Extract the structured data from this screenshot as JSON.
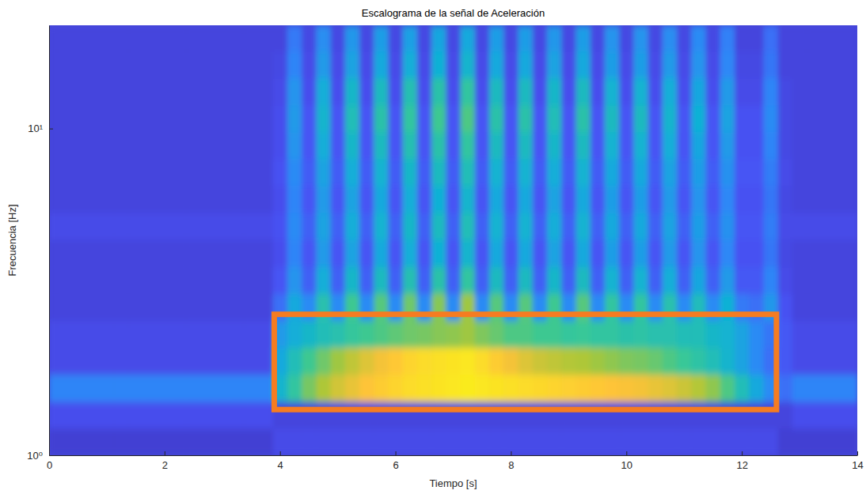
{
  "chart_data": {
    "type": "heatmap",
    "title": "Escalograma de la señal de Aceleración",
    "x_label": "Tiempo [s]",
    "y_label": "Frecuencia [Hz]",
    "xlim": [
      0,
      14
    ],
    "xticks": [
      0,
      2,
      4,
      6,
      8,
      10,
      12,
      14
    ],
    "ylim": [
      1,
      20.7
    ],
    "yticks": [
      {
        "value": 1,
        "label": "10⁰"
      },
      {
        "value": 10,
        "label": "10¹"
      }
    ],
    "log": "y",
    "grid": false,
    "zlim": [
      0,
      1
    ],
    "x_bins": [
      0,
      0.125,
      0.375,
      0.625,
      0.875,
      1.125,
      1.375,
      1.625,
      1.875,
      2.125,
      2.375,
      2.625,
      2.875,
      3.125,
      3.375,
      3.625,
      3.875,
      4.125,
      4.375,
      4.625,
      4.875,
      5.125,
      5.375,
      5.625,
      5.875,
      6.125,
      6.375,
      6.625,
      6.875,
      7.125,
      7.375,
      7.625,
      7.875,
      8.125,
      8.375,
      8.625,
      8.875,
      9.125,
      9.375,
      9.625,
      9.875,
      10.125,
      10.375,
      10.625,
      10.875,
      11.125,
      11.375,
      11.625,
      11.875,
      12.125,
      12.375,
      12.625,
      12.875,
      13.125,
      13.375,
      13.625,
      13.875,
      14
    ],
    "y_bins": [
      1,
      1.21,
      1.46,
      1.77,
      2.14,
      2.59,
      3.13,
      3.78,
      4.57,
      5.53,
      6.69,
      8.09,
      9.78,
      11.8,
      14.3,
      17.3,
      20.7
    ],
    "z": [
      [
        0.08,
        0.08,
        0.08,
        0.08,
        0.08,
        0.08,
        0.08,
        0.08,
        0.08,
        0.08,
        0.08,
        0.08,
        0.08,
        0.08,
        0.08,
        0.08,
        0.12,
        0.12,
        0.12,
        0.12,
        0.12,
        0.12,
        0.12,
        0.12,
        0.12,
        0.12,
        0.12,
        0.12,
        0.12,
        0.12,
        0.12,
        0.12,
        0.12,
        0.12,
        0.12,
        0.12,
        0.12,
        0.12,
        0.12,
        0.12,
        0.12,
        0.12,
        0.12,
        0.12,
        0.12,
        0.12,
        0.12,
        0.12,
        0.12,
        0.12,
        0.12,
        0.08,
        0.08,
        0.08,
        0.08,
        0.08,
        0.08
      ],
      [
        0.13,
        0.13,
        0.13,
        0.13,
        0.13,
        0.13,
        0.13,
        0.13,
        0.13,
        0.13,
        0.13,
        0.13,
        0.13,
        0.13,
        0.13,
        0.13,
        0.1,
        0.1,
        0.1,
        0.1,
        0.1,
        0.1,
        0.1,
        0.1,
        0.1,
        0.1,
        0.1,
        0.1,
        0.1,
        0.1,
        0.1,
        0.1,
        0.1,
        0.1,
        0.1,
        0.1,
        0.1,
        0.1,
        0.1,
        0.1,
        0.1,
        0.1,
        0.1,
        0.1,
        0.1,
        0.1,
        0.1,
        0.1,
        0.1,
        0.1,
        0.1,
        0.1,
        0.13,
        0.13,
        0.13,
        0.13,
        0.13
      ],
      [
        0.28,
        0.28,
        0.28,
        0.28,
        0.28,
        0.28,
        0.28,
        0.28,
        0.28,
        0.28,
        0.28,
        0.28,
        0.28,
        0.28,
        0.28,
        0.28,
        0.45,
        0.55,
        0.65,
        0.72,
        0.78,
        0.82,
        0.86,
        0.88,
        0.9,
        0.92,
        0.93,
        0.94,
        0.95,
        0.96,
        0.95,
        0.94,
        0.93,
        0.92,
        0.91,
        0.9,
        0.89,
        0.88,
        0.87,
        0.86,
        0.85,
        0.84,
        0.82,
        0.8,
        0.77,
        0.73,
        0.68,
        0.6,
        0.5,
        0.4,
        0.3,
        0.22,
        0.28,
        0.28,
        0.28,
        0.28,
        0.28
      ],
      [
        0.12,
        0.12,
        0.12,
        0.12,
        0.12,
        0.12,
        0.12,
        0.12,
        0.12,
        0.12,
        0.12,
        0.12,
        0.12,
        0.12,
        0.12,
        0.12,
        0.4,
        0.5,
        0.58,
        0.64,
        0.7,
        0.75,
        0.8,
        0.84,
        0.87,
        0.9,
        0.92,
        0.93,
        0.94,
        0.95,
        0.92,
        0.88,
        0.84,
        0.8,
        0.77,
        0.75,
        0.73,
        0.72,
        0.7,
        0.68,
        0.66,
        0.65,
        0.63,
        0.6,
        0.57,
        0.54,
        0.5,
        0.45,
        0.38,
        0.3,
        0.22,
        0.16,
        0.12,
        0.12,
        0.12,
        0.12,
        0.12
      ],
      [
        0.12,
        0.12,
        0.12,
        0.12,
        0.12,
        0.12,
        0.12,
        0.12,
        0.12,
        0.12,
        0.12,
        0.12,
        0.12,
        0.12,
        0.12,
        0.12,
        0.35,
        0.42,
        0.46,
        0.5,
        0.52,
        0.56,
        0.58,
        0.6,
        0.62,
        0.64,
        0.65,
        0.67,
        0.68,
        0.7,
        0.66,
        0.63,
        0.6,
        0.6,
        0.58,
        0.58,
        0.56,
        0.57,
        0.55,
        0.55,
        0.53,
        0.54,
        0.52,
        0.52,
        0.5,
        0.5,
        0.46,
        0.44,
        0.38,
        0.3,
        0.24,
        0.16,
        0.12,
        0.12,
        0.12,
        0.12,
        0.12
      ],
      [
        0.1,
        0.1,
        0.1,
        0.1,
        0.1,
        0.1,
        0.1,
        0.1,
        0.1,
        0.1,
        0.1,
        0.1,
        0.1,
        0.1,
        0.1,
        0.1,
        0.22,
        0.4,
        0.3,
        0.52,
        0.3,
        0.58,
        0.3,
        0.61,
        0.3,
        0.64,
        0.3,
        0.67,
        0.3,
        0.7,
        0.3,
        0.61,
        0.3,
        0.61,
        0.3,
        0.58,
        0.3,
        0.61,
        0.3,
        0.55,
        0.3,
        0.55,
        0.3,
        0.52,
        0.3,
        0.49,
        0.3,
        0.43,
        0.25,
        0.22,
        0.34,
        0.14,
        0.1,
        0.1,
        0.1,
        0.1,
        0.1
      ],
      [
        0.1,
        0.1,
        0.1,
        0.1,
        0.1,
        0.1,
        0.1,
        0.1,
        0.1,
        0.1,
        0.1,
        0.1,
        0.1,
        0.1,
        0.1,
        0.1,
        0.15,
        0.33,
        0.18,
        0.42,
        0.18,
        0.46,
        0.18,
        0.48,
        0.18,
        0.51,
        0.18,
        0.53,
        0.18,
        0.55,
        0.18,
        0.48,
        0.18,
        0.48,
        0.18,
        0.46,
        0.18,
        0.48,
        0.18,
        0.44,
        0.18,
        0.44,
        0.18,
        0.42,
        0.18,
        0.39,
        0.18,
        0.35,
        0.16,
        0.16,
        0.28,
        0.12,
        0.1,
        0.1,
        0.1,
        0.1,
        0.1
      ],
      [
        0.1,
        0.1,
        0.1,
        0.1,
        0.1,
        0.1,
        0.1,
        0.1,
        0.1,
        0.1,
        0.1,
        0.1,
        0.1,
        0.1,
        0.1,
        0.1,
        0.13,
        0.28,
        0.15,
        0.35,
        0.15,
        0.38,
        0.15,
        0.4,
        0.15,
        0.42,
        0.15,
        0.43,
        0.15,
        0.45,
        0.15,
        0.4,
        0.15,
        0.4,
        0.15,
        0.38,
        0.15,
        0.4,
        0.15,
        0.36,
        0.15,
        0.36,
        0.15,
        0.35,
        0.15,
        0.33,
        0.15,
        0.29,
        0.14,
        0.14,
        0.24,
        0.11,
        0.1,
        0.1,
        0.1,
        0.1,
        0.1
      ],
      [
        0.12,
        0.12,
        0.12,
        0.12,
        0.12,
        0.12,
        0.12,
        0.12,
        0.12,
        0.12,
        0.12,
        0.12,
        0.12,
        0.12,
        0.12,
        0.12,
        0.14,
        0.3,
        0.18,
        0.38,
        0.18,
        0.42,
        0.18,
        0.44,
        0.18,
        0.46,
        0.18,
        0.48,
        0.18,
        0.5,
        0.18,
        0.44,
        0.18,
        0.44,
        0.18,
        0.42,
        0.18,
        0.44,
        0.18,
        0.4,
        0.18,
        0.4,
        0.18,
        0.38,
        0.18,
        0.36,
        0.18,
        0.32,
        0.15,
        0.15,
        0.26,
        0.12,
        0.12,
        0.12,
        0.12,
        0.12,
        0.12
      ],
      [
        0.1,
        0.1,
        0.1,
        0.1,
        0.1,
        0.1,
        0.1,
        0.1,
        0.1,
        0.1,
        0.1,
        0.1,
        0.1,
        0.1,
        0.1,
        0.1,
        0.13,
        0.28,
        0.15,
        0.35,
        0.15,
        0.38,
        0.15,
        0.4,
        0.15,
        0.42,
        0.15,
        0.43,
        0.15,
        0.45,
        0.15,
        0.4,
        0.15,
        0.4,
        0.15,
        0.38,
        0.15,
        0.4,
        0.15,
        0.36,
        0.15,
        0.36,
        0.15,
        0.35,
        0.15,
        0.33,
        0.15,
        0.29,
        0.14,
        0.14,
        0.24,
        0.11,
        0.1,
        0.1,
        0.1,
        0.1,
        0.1
      ],
      [
        0.1,
        0.1,
        0.1,
        0.1,
        0.1,
        0.1,
        0.1,
        0.1,
        0.1,
        0.1,
        0.1,
        0.1,
        0.1,
        0.1,
        0.1,
        0.1,
        0.14,
        0.3,
        0.17,
        0.38,
        0.17,
        0.42,
        0.17,
        0.44,
        0.17,
        0.46,
        0.17,
        0.48,
        0.17,
        0.5,
        0.17,
        0.44,
        0.17,
        0.44,
        0.17,
        0.42,
        0.17,
        0.44,
        0.17,
        0.4,
        0.17,
        0.4,
        0.17,
        0.38,
        0.17,
        0.36,
        0.17,
        0.32,
        0.15,
        0.15,
        0.26,
        0.12,
        0.1,
        0.1,
        0.1,
        0.1,
        0.1
      ],
      [
        0.1,
        0.1,
        0.1,
        0.1,
        0.1,
        0.1,
        0.1,
        0.1,
        0.1,
        0.1,
        0.1,
        0.1,
        0.1,
        0.1,
        0.1,
        0.1,
        0.13,
        0.33,
        0.15,
        0.42,
        0.15,
        0.46,
        0.15,
        0.48,
        0.15,
        0.51,
        0.15,
        0.53,
        0.15,
        0.55,
        0.15,
        0.48,
        0.15,
        0.48,
        0.15,
        0.46,
        0.15,
        0.48,
        0.15,
        0.44,
        0.15,
        0.44,
        0.15,
        0.42,
        0.15,
        0.39,
        0.15,
        0.35,
        0.14,
        0.14,
        0.28,
        0.11,
        0.1,
        0.1,
        0.1,
        0.1,
        0.1
      ],
      [
        0.1,
        0.1,
        0.1,
        0.1,
        0.1,
        0.1,
        0.1,
        0.1,
        0.1,
        0.1,
        0.1,
        0.1,
        0.1,
        0.1,
        0.1,
        0.1,
        0.13,
        0.35,
        0.15,
        0.45,
        0.15,
        0.5,
        0.15,
        0.53,
        0.15,
        0.55,
        0.15,
        0.58,
        0.15,
        0.6,
        0.15,
        0.53,
        0.15,
        0.53,
        0.15,
        0.5,
        0.15,
        0.53,
        0.15,
        0.48,
        0.15,
        0.48,
        0.15,
        0.45,
        0.15,
        0.43,
        0.15,
        0.38,
        0.14,
        0.14,
        0.3,
        0.11,
        0.1,
        0.1,
        0.1,
        0.1,
        0.1
      ],
      [
        0.1,
        0.1,
        0.1,
        0.1,
        0.1,
        0.1,
        0.1,
        0.1,
        0.1,
        0.1,
        0.1,
        0.1,
        0.1,
        0.1,
        0.1,
        0.1,
        0.12,
        0.33,
        0.13,
        0.42,
        0.13,
        0.46,
        0.13,
        0.48,
        0.13,
        0.51,
        0.13,
        0.53,
        0.13,
        0.55,
        0.13,
        0.48,
        0.13,
        0.48,
        0.13,
        0.46,
        0.13,
        0.48,
        0.13,
        0.44,
        0.13,
        0.44,
        0.13,
        0.42,
        0.13,
        0.39,
        0.13,
        0.35,
        0.12,
        0.12,
        0.28,
        0.11,
        0.1,
        0.1,
        0.1,
        0.1,
        0.1
      ],
      [
        0.1,
        0.1,
        0.1,
        0.1,
        0.1,
        0.1,
        0.1,
        0.1,
        0.1,
        0.1,
        0.1,
        0.1,
        0.1,
        0.1,
        0.1,
        0.1,
        0.11,
        0.28,
        0.12,
        0.35,
        0.12,
        0.38,
        0.12,
        0.4,
        0.12,
        0.42,
        0.12,
        0.43,
        0.12,
        0.45,
        0.12,
        0.4,
        0.12,
        0.4,
        0.12,
        0.38,
        0.12,
        0.4,
        0.12,
        0.36,
        0.12,
        0.36,
        0.12,
        0.35,
        0.12,
        0.33,
        0.12,
        0.29,
        0.11,
        0.11,
        0.24,
        0.1,
        0.1,
        0.1,
        0.1,
        0.1,
        0.1
      ],
      [
        0.1,
        0.1,
        0.1,
        0.1,
        0.1,
        0.1,
        0.1,
        0.1,
        0.1,
        0.1,
        0.1,
        0.1,
        0.1,
        0.1,
        0.1,
        0.1,
        0.1,
        0.25,
        0.11,
        0.31,
        0.11,
        0.34,
        0.11,
        0.36,
        0.11,
        0.37,
        0.11,
        0.39,
        0.11,
        0.4,
        0.11,
        0.36,
        0.11,
        0.36,
        0.11,
        0.34,
        0.11,
        0.36,
        0.11,
        0.33,
        0.11,
        0.33,
        0.11,
        0.31,
        0.11,
        0.3,
        0.11,
        0.27,
        0.1,
        0.1,
        0.22,
        0.1,
        0.1,
        0.1,
        0.1,
        0.1,
        0.1
      ]
    ],
    "box": {
      "x": [
        3.9,
        12.6
      ],
      "y": [
        1.38,
        2.7
      ],
      "color": "#f57c21"
    }
  }
}
